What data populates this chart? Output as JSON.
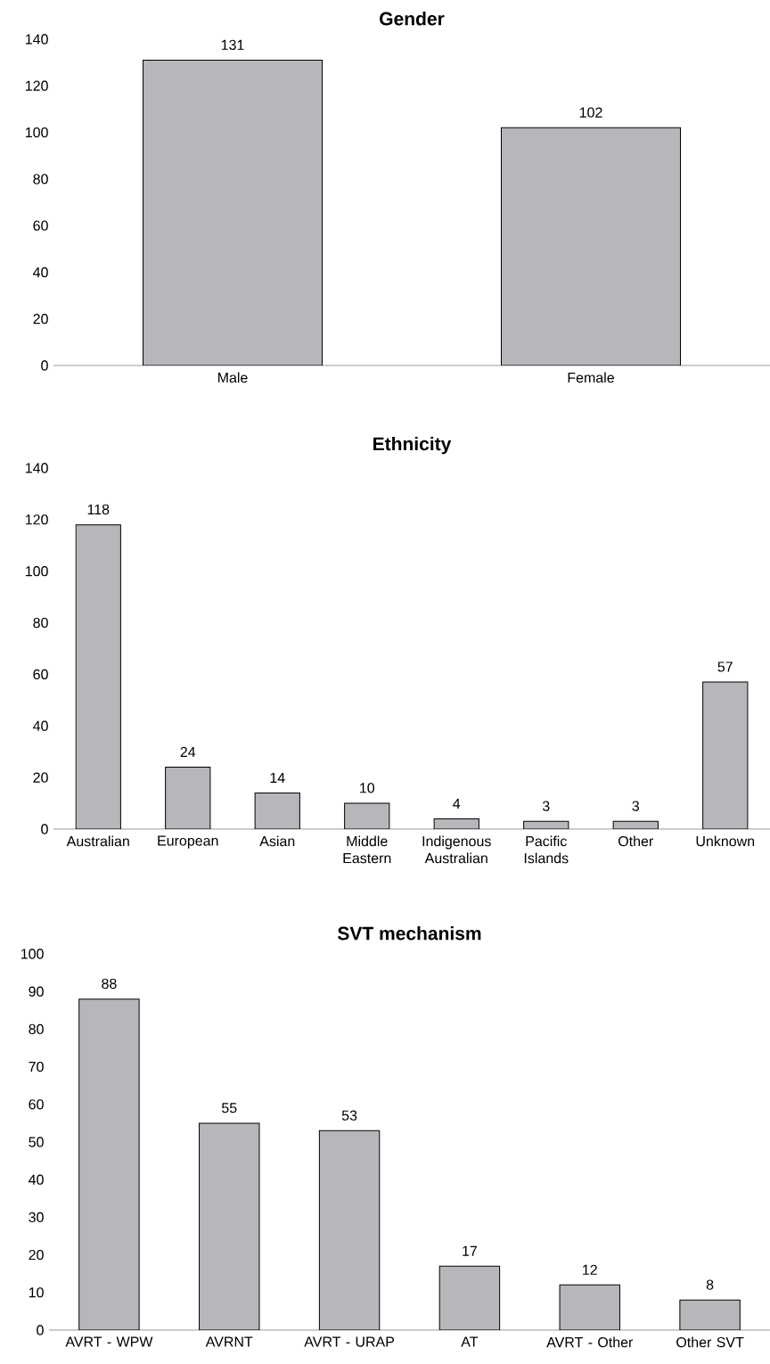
{
  "chart_data": [
    {
      "type": "bar",
      "title": "Gender",
      "categories": [
        "Male",
        "Female"
      ],
      "values": [
        131,
        102
      ],
      "color": "#b6b7bb",
      "ylim": [
        0,
        140
      ],
      "yticks": [
        0,
        20,
        40,
        60,
        80,
        100,
        120,
        140
      ],
      "data_labels": true
    },
    {
      "type": "bar",
      "title": "Ethnicity",
      "categories": [
        "Australian",
        "European",
        "Asian",
        "Middle Eastern",
        "Indigenous Australian",
        "Pacific Islands",
        "Other",
        "Unknown"
      ],
      "values": [
        118,
        24,
        14,
        10,
        4,
        3,
        3,
        57
      ],
      "color": "#b6b7bb",
      "ylim": [
        0,
        140
      ],
      "yticks": [
        0,
        20,
        40,
        60,
        80,
        100,
        120,
        140
      ],
      "data_labels": true
    },
    {
      "type": "bar",
      "title": "SVT mechanism",
      "categories": [
        "AVRT - WPW",
        "AVRNT",
        "AVRT - URAP",
        "AT",
        "AVRT - Other",
        "Other SVT"
      ],
      "values": [
        88,
        55,
        53,
        17,
        12,
        8
      ],
      "color": "#b6b7bb",
      "ylim": [
        0,
        100
      ],
      "yticks": [
        0,
        10,
        20,
        30,
        40,
        50,
        60,
        70,
        80,
        90,
        100
      ],
      "data_labels": true
    }
  ]
}
